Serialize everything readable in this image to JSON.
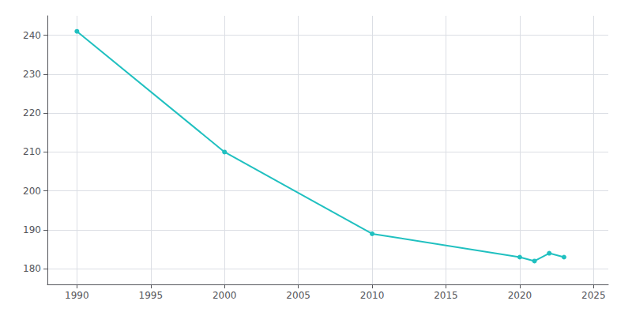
{
  "chart_data": {
    "type": "line",
    "x": [
      1990,
      2000,
      2010,
      2020,
      2021,
      2022,
      2023
    ],
    "values": [
      241,
      210,
      189,
      183,
      182,
      184,
      183
    ],
    "color": "#20c0c0",
    "marker": "circle",
    "xlim": [
      1988,
      2026
    ],
    "ylim": [
      176,
      245
    ],
    "xticks": [
      1990,
      1995,
      2000,
      2005,
      2010,
      2015,
      2020,
      2025
    ],
    "yticks": [
      180,
      190,
      200,
      210,
      220,
      230,
      240
    ],
    "grid": true
  }
}
